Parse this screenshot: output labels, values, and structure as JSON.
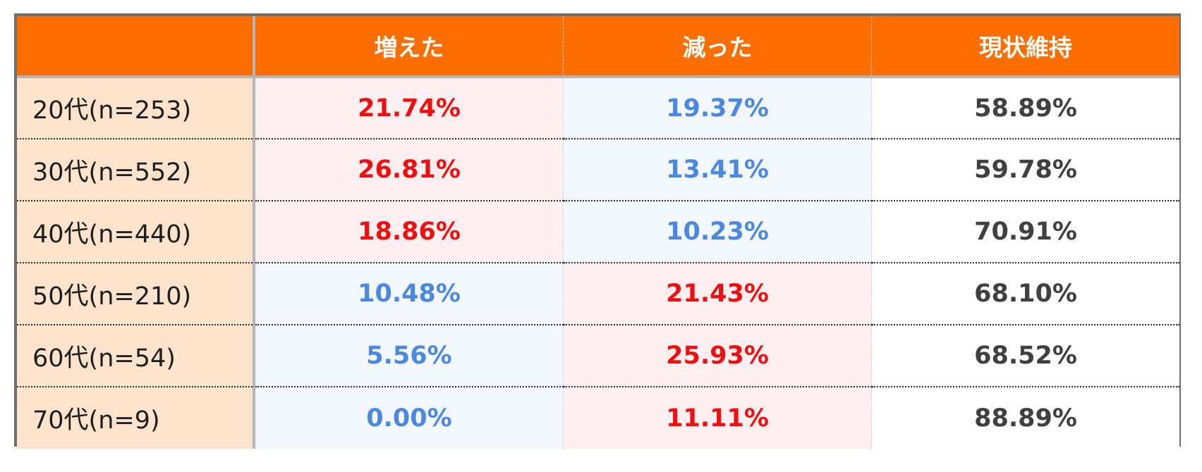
{
  "chart_data": {
    "type": "table",
    "columns": [
      "",
      "増えた",
      "減った",
      "現状維持"
    ],
    "rows": [
      {
        "label": "20代(n=253)",
        "values": [
          "21.74%",
          "19.37%",
          "58.89%"
        ],
        "styles": [
          "up",
          "down",
          "keep"
        ]
      },
      {
        "label": "30代(n=552)",
        "values": [
          "26.81%",
          "13.41%",
          "59.78%"
        ],
        "styles": [
          "up",
          "down",
          "keep"
        ]
      },
      {
        "label": "40代(n=440)",
        "values": [
          "18.86%",
          "10.23%",
          "70.91%"
        ],
        "styles": [
          "up",
          "down",
          "keep"
        ]
      },
      {
        "label": "50代(n=210)",
        "values": [
          "10.48%",
          "21.43%",
          "68.10%"
        ],
        "styles": [
          "down",
          "up",
          "keep"
        ]
      },
      {
        "label": "60代(n=54)",
        "values": [
          "5.56%",
          "25.93%",
          "68.52%"
        ],
        "styles": [
          "down",
          "up",
          "keep"
        ]
      },
      {
        "label": "70代(n=9)",
        "values": [
          "0.00%",
          "11.11%",
          "88.89%"
        ],
        "styles": [
          "down",
          "up",
          "keep"
        ]
      }
    ]
  },
  "colors": {
    "header_bg": "#ff6e00",
    "label_bg": "#fde3cb",
    "highlight_text": "#ee1010",
    "highlight_bg": "#fdeef0",
    "muted_text": "#4a88e2",
    "muted_bg": "#f2f7fd",
    "neutral_text": "#404040"
  }
}
